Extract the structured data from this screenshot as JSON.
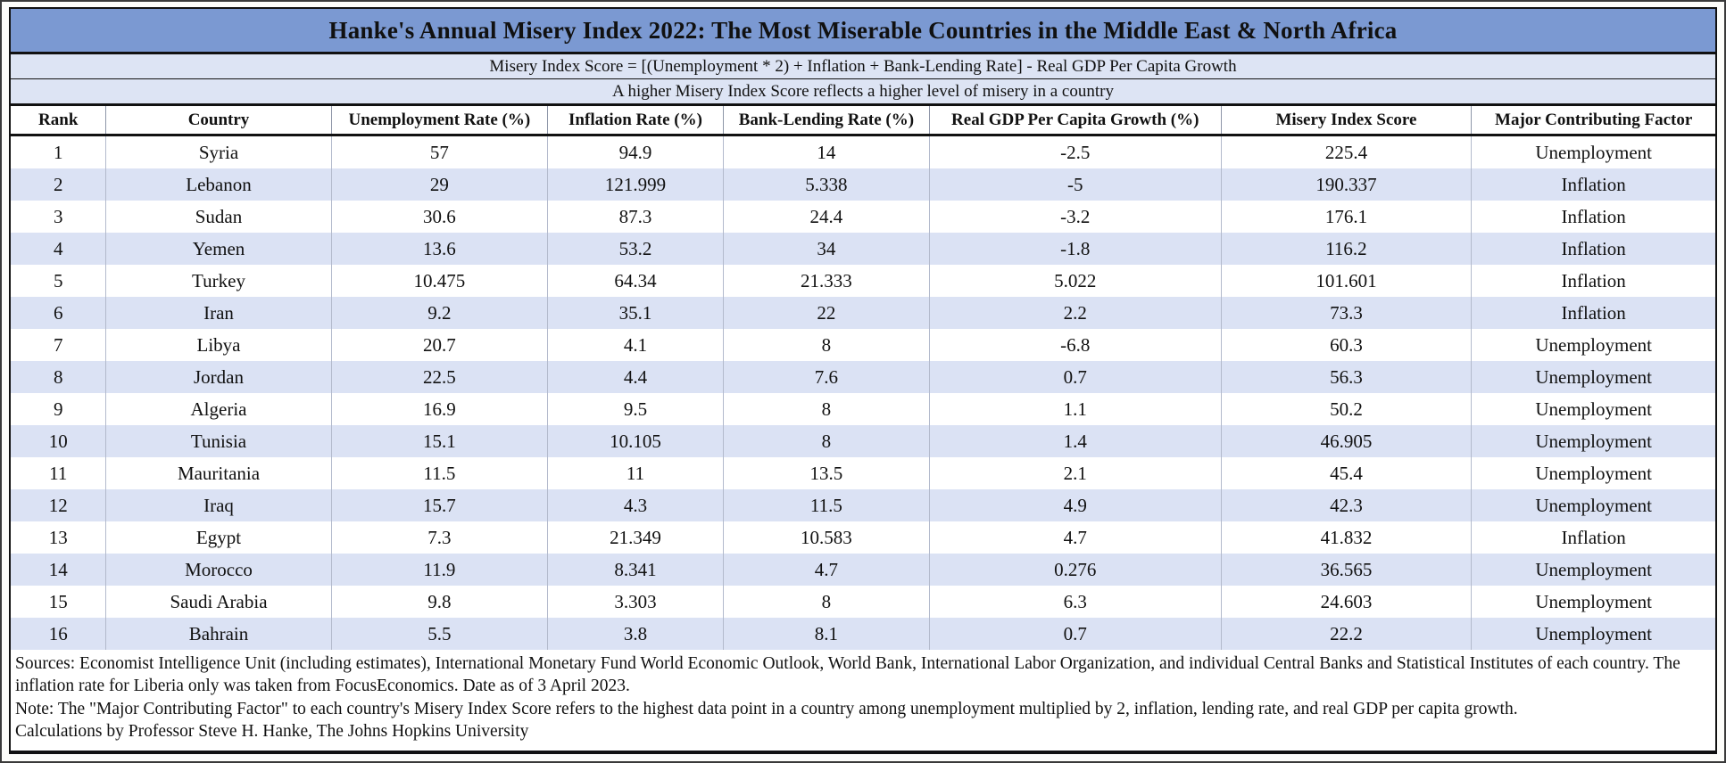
{
  "chart_data": {
    "type": "table",
    "title": "Hanke's Annual Misery Index 2022: The Most Miserable Countries in the Middle East & North Africa",
    "subtitle": "Misery Index Score = [(Unemployment * 2) + Inflation + Bank-Lending Rate] - Real GDP Per Capita Growth",
    "note": "A higher Misery Index Score reflects a higher level of misery in a country",
    "columns": [
      "Rank",
      "Country",
      "Unemployment Rate (%)",
      "Inflation Rate (%)",
      "Bank-Lending Rate (%)",
      "Real GDP Per Capita Growth (%)",
      "Misery Index Score",
      "Major Contributing Factor"
    ],
    "rows": [
      {
        "rank": "1",
        "country": "Syria",
        "unemployment": "57",
        "inflation": "94.9",
        "lending": "14",
        "gdp_growth": "-2.5",
        "misery": "225.4",
        "factor": "Unemployment"
      },
      {
        "rank": "2",
        "country": "Lebanon",
        "unemployment": "29",
        "inflation": "121.999",
        "lending": "5.338",
        "gdp_growth": "-5",
        "misery": "190.337",
        "factor": "Inflation"
      },
      {
        "rank": "3",
        "country": "Sudan",
        "unemployment": "30.6",
        "inflation": "87.3",
        "lending": "24.4",
        "gdp_growth": "-3.2",
        "misery": "176.1",
        "factor": "Inflation"
      },
      {
        "rank": "4",
        "country": "Yemen",
        "unemployment": "13.6",
        "inflation": "53.2",
        "lending": "34",
        "gdp_growth": "-1.8",
        "misery": "116.2",
        "factor": "Inflation"
      },
      {
        "rank": "5",
        "country": "Turkey",
        "unemployment": "10.475",
        "inflation": "64.34",
        "lending": "21.333",
        "gdp_growth": "5.022",
        "misery": "101.601",
        "factor": "Inflation"
      },
      {
        "rank": "6",
        "country": "Iran",
        "unemployment": "9.2",
        "inflation": "35.1",
        "lending": "22",
        "gdp_growth": "2.2",
        "misery": "73.3",
        "factor": "Inflation"
      },
      {
        "rank": "7",
        "country": "Libya",
        "unemployment": "20.7",
        "inflation": "4.1",
        "lending": "8",
        "gdp_growth": "-6.8",
        "misery": "60.3",
        "factor": "Unemployment"
      },
      {
        "rank": "8",
        "country": "Jordan",
        "unemployment": "22.5",
        "inflation": "4.4",
        "lending": "7.6",
        "gdp_growth": "0.7",
        "misery": "56.3",
        "factor": "Unemployment"
      },
      {
        "rank": "9",
        "country": "Algeria",
        "unemployment": "16.9",
        "inflation": "9.5",
        "lending": "8",
        "gdp_growth": "1.1",
        "misery": "50.2",
        "factor": "Unemployment"
      },
      {
        "rank": "10",
        "country": "Tunisia",
        "unemployment": "15.1",
        "inflation": "10.105",
        "lending": "8",
        "gdp_growth": "1.4",
        "misery": "46.905",
        "factor": "Unemployment"
      },
      {
        "rank": "11",
        "country": "Mauritania",
        "unemployment": "11.5",
        "inflation": "11",
        "lending": "13.5",
        "gdp_growth": "2.1",
        "misery": "45.4",
        "factor": "Unemployment"
      },
      {
        "rank": "12",
        "country": "Iraq",
        "unemployment": "15.7",
        "inflation": "4.3",
        "lending": "11.5",
        "gdp_growth": "4.9",
        "misery": "42.3",
        "factor": "Unemployment"
      },
      {
        "rank": "13",
        "country": "Egypt",
        "unemployment": "7.3",
        "inflation": "21.349",
        "lending": "10.583",
        "gdp_growth": "4.7",
        "misery": "41.832",
        "factor": "Inflation"
      },
      {
        "rank": "14",
        "country": "Morocco",
        "unemployment": "11.9",
        "inflation": "8.341",
        "lending": "4.7",
        "gdp_growth": "0.276",
        "misery": "36.565",
        "factor": "Unemployment"
      },
      {
        "rank": "15",
        "country": "Saudi Arabia",
        "unemployment": "9.8",
        "inflation": "3.303",
        "lending": "8",
        "gdp_growth": "6.3",
        "misery": "24.603",
        "factor": "Unemployment"
      },
      {
        "rank": "16",
        "country": "Bahrain",
        "unemployment": "5.5",
        "inflation": "3.8",
        "lending": "8.1",
        "gdp_growth": "0.7",
        "misery": "22.2",
        "factor": "Unemployment"
      }
    ],
    "footnotes": [
      "Sources: Economist Intelligence Unit (including estimates), International Monetary Fund World Economic Outlook, World Bank, International Labor Organization, and individual Central Banks and Statistical Institutes of each country. The inflation rate for Liberia only was taken from FocusEconomics. Date as of 3 April 2023.",
      "Note: The \"Major Contributing Factor\" to each country's Misery Index Score refers to the highest data point in a country among unemployment multiplied by 2, inflation, lending rate, and real GDP per capita growth.",
      "Calculations by Professor Steve H. Hanke, The Johns Hopkins University"
    ],
    "colors": {
      "title_band": "#7b99d2",
      "subtitle_band": "#dde4f4",
      "row_alt": "#dbe2f4",
      "border": "#111111"
    },
    "layout": {
      "column_widths_pct": [
        5.6,
        13.2,
        12.7,
        10.3,
        12.1,
        17.1,
        14.7,
        14.3
      ],
      "grid": "on",
      "row_striping": "even rows shaded"
    }
  }
}
